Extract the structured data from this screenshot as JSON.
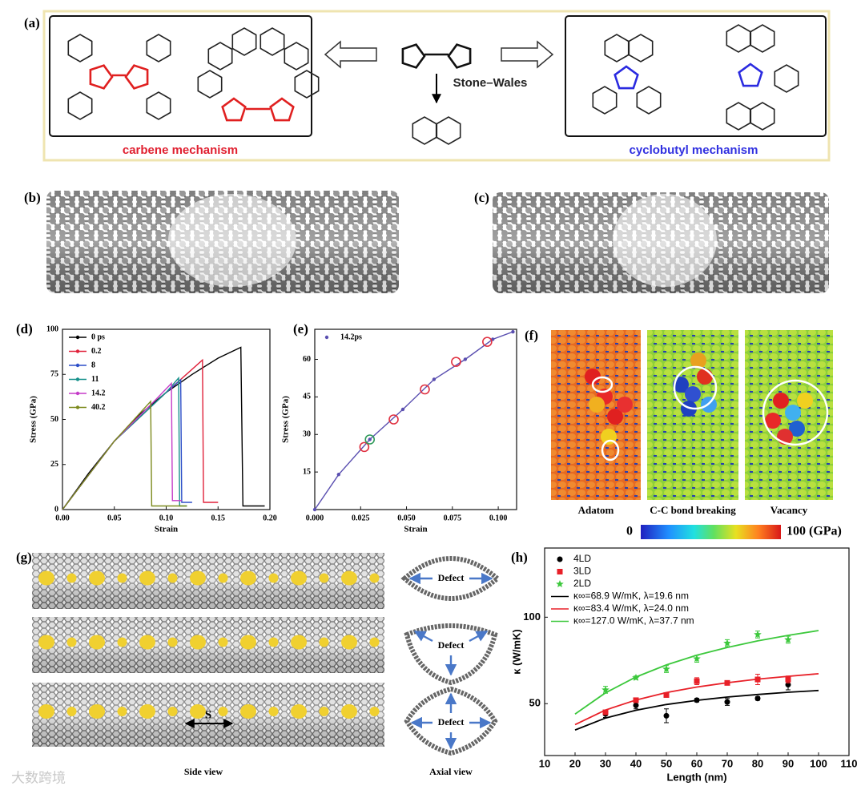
{
  "panels": {
    "a": {
      "label": "(a)",
      "left_caption": "carbene mechanism",
      "arrow_label": "Stone–Wales",
      "right_caption": "cyclobutyl mechanism"
    },
    "b": {
      "label": "(b)"
    },
    "c": {
      "label": "(c)"
    },
    "f": {
      "label": "(f)",
      "captions": [
        "Adatom",
        "C-C bond breaking",
        "Vacancy"
      ],
      "colorbar_min": "0",
      "colorbar_max": "100 (GPa)"
    },
    "g": {
      "label": "(g)",
      "defect_labels": [
        "Defect",
        "Defect",
        "Defect"
      ],
      "spacing_label": "S",
      "side_caption": "Side view",
      "axial_caption": "Axial view"
    },
    "watermark": "大数跨境"
  },
  "chart_data": [
    {
      "type": "line",
      "panel_label": "(d)",
      "xlabel": "Strain",
      "ylabel": "Stress (GPa)",
      "xlim": [
        0,
        0.2
      ],
      "xticks": [
        {
          "value": 0,
          "label": "0.00"
        },
        {
          "value": 0.05,
          "label": "0.05"
        },
        {
          "value": 0.1,
          "label": "0.10"
        },
        {
          "value": 0.15,
          "label": "0.15"
        },
        {
          "value": 0.2,
          "label": "0.20"
        }
      ],
      "ylim": [
        0,
        100
      ],
      "yticks": [
        0,
        25,
        50,
        75,
        100
      ],
      "legend": "upper left",
      "series": [
        {
          "name": "0  ps",
          "color": "#000000",
          "x": [
            0,
            0.025,
            0.05,
            0.075,
            0.1,
            0.125,
            0.15,
            0.172,
            0.174,
            0.18,
            0.195
          ],
          "values": [
            0,
            20,
            38,
            53,
            65,
            75,
            84,
            90,
            2,
            2,
            2
          ]
        },
        {
          "name": "0.2",
          "color": "#e0213a",
          "x": [
            0,
            0.05,
            0.1,
            0.135,
            0.136,
            0.15
          ],
          "values": [
            0,
            38,
            65,
            83,
            4,
            4
          ]
        },
        {
          "name": "8",
          "color": "#2d4fc8",
          "x": [
            0,
            0.05,
            0.1,
            0.114,
            0.115,
            0.125
          ],
          "values": [
            0,
            38,
            65,
            72,
            4,
            4
          ]
        },
        {
          "name": "11",
          "color": "#14908a",
          "x": [
            0,
            0.05,
            0.1,
            0.112,
            0.113,
            0.12
          ],
          "values": [
            0,
            38,
            65,
            73,
            2,
            2
          ]
        },
        {
          "name": "14.2",
          "color": "#c53cc8",
          "x": [
            0,
            0.05,
            0.09,
            0.105,
            0.106,
            0.115
          ],
          "values": [
            0,
            38,
            61,
            70,
            5,
            5
          ]
        },
        {
          "name": "40.2",
          "color": "#7c8a1c",
          "x": [
            0,
            0.05,
            0.085,
            0.086,
            0.12
          ],
          "values": [
            0,
            38,
            60,
            2,
            2
          ]
        }
      ]
    },
    {
      "type": "line",
      "panel_label": "(e)",
      "xlabel": "Strain",
      "ylabel": "Stress (GPa)",
      "xlim": [
        0,
        0.11
      ],
      "xticks": [
        {
          "value": 0,
          "label": "0.000"
        },
        {
          "value": 0.025,
          "label": "0.025"
        },
        {
          "value": 0.05,
          "label": "0.050"
        },
        {
          "value": 0.075,
          "label": "0.075"
        },
        {
          "value": 0.1,
          "label": "0.100"
        }
      ],
      "ylim": [
        0,
        72
      ],
      "yticks": [
        15,
        30,
        45,
        60
      ],
      "legend": "upper left",
      "series": [
        {
          "name": "14.2ps",
          "color": "#5a4fb0",
          "marker": "dot",
          "x": [
            0,
            0.013,
            0.03,
            0.048,
            0.065,
            0.082,
            0.097,
            0.108
          ],
          "values": [
            0,
            14,
            28,
            40,
            52,
            60,
            68,
            71
          ]
        }
      ],
      "highlighted_points": [
        {
          "color": "#e03040",
          "x": [
            0.027,
            0.043,
            0.06,
            0.077,
            0.094
          ],
          "values": [
            25,
            36,
            48,
            59,
            67
          ]
        },
        {
          "color": "#2f9a5a",
          "x": [
            0.03
          ],
          "values": [
            28
          ]
        }
      ]
    },
    {
      "type": "scatter",
      "panel_label": "(h)",
      "xlabel": "Length (nm)",
      "ylabel": "κ (W/mK)",
      "xlim": [
        10,
        110
      ],
      "xticks": [
        10,
        20,
        30,
        40,
        50,
        60,
        70,
        80,
        90,
        100,
        110
      ],
      "ylim": [
        20,
        140
      ],
      "yticks": [
        50,
        100
      ],
      "legend": "upper left",
      "series": [
        {
          "name": "4LD",
          "color": "#000000",
          "marker": "circle",
          "x": [
            30,
            40,
            50,
            60,
            70,
            80,
            90
          ],
          "values": [
            44,
            49,
            43,
            52,
            51,
            53,
            61
          ],
          "errors": [
            2,
            2,
            4,
            1,
            2,
            1,
            3
          ]
        },
        {
          "name": "3LD",
          "color": "#e82028",
          "marker": "square",
          "x": [
            30,
            40,
            50,
            60,
            70,
            80,
            90
          ],
          "values": [
            45,
            52,
            55,
            63,
            62,
            64,
            64
          ],
          "errors": [
            1,
            1,
            1,
            2,
            1,
            3,
            2
          ]
        },
        {
          "name": "2LD",
          "color": "#3cc83c",
          "marker": "star",
          "x": [
            30,
            40,
            50,
            60,
            70,
            80,
            90
          ],
          "values": [
            58,
            65,
            70,
            76,
            85,
            90,
            87
          ],
          "errors": [
            2,
            1,
            2,
            2,
            2,
            2,
            2
          ]
        },
        {
          "name": "κ∞=68.9 W/mK, λ=19.6 nm",
          "color": "#000000",
          "style": "line",
          "x": [
            20,
            30,
            40,
            50,
            60,
            70,
            80,
            90,
            100
          ],
          "values": [
            34.8,
            41.7,
            46.2,
            49.5,
            51.9,
            53.8,
            55.3,
            56.6,
            57.6
          ]
        },
        {
          "name": "κ∞=83.4 W/mK, λ=24.0 nm",
          "color": "#e82028",
          "style": "line",
          "x": [
            20,
            30,
            40,
            50,
            60,
            70,
            80,
            90,
            100
          ],
          "values": [
            37.9,
            46.3,
            52.1,
            56.4,
            59.6,
            62.1,
            64.2,
            65.8,
            67.3
          ]
        },
        {
          "name": "κ∞=127.0 W/mK, λ=37.7 nm",
          "color": "#3cc83c",
          "style": "line",
          "x": [
            20,
            30,
            40,
            50,
            60,
            70,
            80,
            90,
            100
          ],
          "values": [
            44.0,
            56.3,
            65.4,
            72.4,
            78.0,
            82.5,
            86.3,
            89.5,
            92.3
          ]
        }
      ]
    }
  ]
}
